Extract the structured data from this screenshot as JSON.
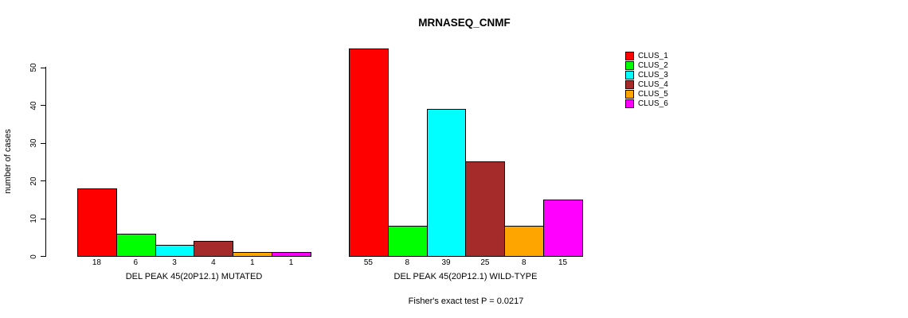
{
  "chart_data": {
    "type": "bar",
    "title": "MRNASEQ_CNMF",
    "ylabel": "number of cases",
    "xlabel": "",
    "ylim": [
      0,
      55
    ],
    "yticks": [
      0,
      10,
      20,
      30,
      40,
      50
    ],
    "grid": false,
    "legend_position": "right",
    "legend": [
      "CLUS_1",
      "CLUS_2",
      "CLUS_3",
      "CLUS_4",
      "CLUS_5",
      "CLUS_6"
    ],
    "colors": [
      "#FF0000",
      "#00FF00",
      "#00FFFF",
      "#A52A2A",
      "#FFA500",
      "#FF00FF"
    ],
    "series": [
      {
        "name": "DEL PEAK 45(20P12.1) MUTATED",
        "xlabel": "DEL PEAK 45(20P12.1) MUTATED",
        "categories": [
          "CLUS_1",
          "CLUS_2",
          "CLUS_3",
          "CLUS_4",
          "CLUS_5",
          "CLUS_6"
        ],
        "values": [
          18,
          6,
          3,
          4,
          1,
          1
        ]
      },
      {
        "name": "DEL PEAK 45(20P12.1) WILD-TYPE",
        "xlabel": "DEL PEAK 45(20P12.1) WILD-TYPE",
        "categories": [
          "CLUS_1",
          "CLUS_2",
          "CLUS_3",
          "CLUS_4",
          "CLUS_5",
          "CLUS_6"
        ],
        "values": [
          55,
          8,
          39,
          25,
          8,
          15
        ]
      }
    ],
    "annotation": "Fisher's exact test P = 0.0217"
  }
}
